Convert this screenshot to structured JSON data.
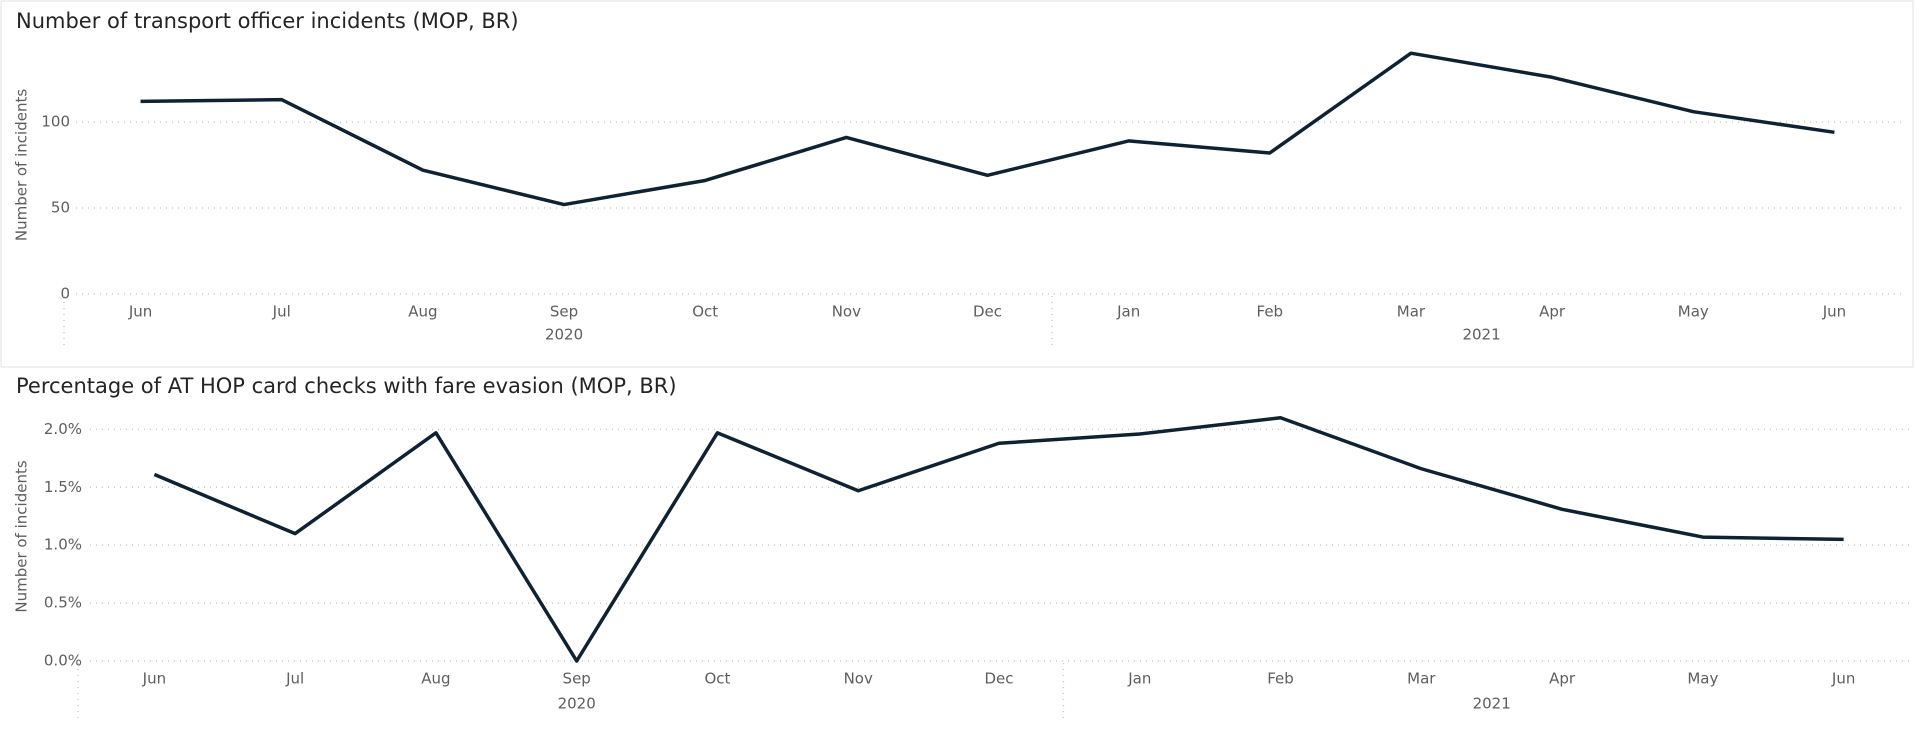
{
  "chart_data": [
    {
      "type": "line",
      "title": "Number of transport officer incidents (MOP, BR)",
      "y_label": "Number of incidents",
      "categories": [
        "Jun",
        "Jul",
        "Aug",
        "Sep",
        "Oct",
        "Nov",
        "Dec",
        "Jan",
        "Feb",
        "Mar",
        "Apr",
        "May",
        "Jun"
      ],
      "groups": [
        {
          "label": "2020",
          "count": 7
        },
        {
          "label": "2021",
          "count": 6
        }
      ],
      "values": [
        112,
        113,
        72,
        52,
        66,
        91,
        69,
        89,
        82,
        140,
        126,
        106,
        94
      ],
      "color": "#0f2233",
      "ylim": [
        0,
        150
      ],
      "yticks": [
        0,
        50,
        100
      ],
      "grid": true
    },
    {
      "type": "line",
      "title": "Percentage of AT HOP card checks with fare evasion (MOP, BR)",
      "y_label": "Number of incidents",
      "categories": [
        "Jun",
        "Jul",
        "Aug",
        "Sep",
        "Oct",
        "Nov",
        "Dec",
        "Jan",
        "Feb",
        "Mar",
        "Apr",
        "May",
        "Jun"
      ],
      "groups": [
        {
          "label": "2020",
          "count": 7
        },
        {
          "label": "2021",
          "count": 6
        }
      ],
      "values": [
        1.61,
        1.1,
        1.97,
        0,
        1.97,
        1.47,
        1.88,
        1.96,
        2.1,
        1.66,
        1.31,
        1.07,
        1.05
      ],
      "color": "#0f2233",
      "ylim": [
        0,
        2.15
      ],
      "yticks": [
        {
          "value": 0,
          "label": "0.0%"
        },
        {
          "value": 0.5,
          "label": "0.5%"
        },
        {
          "value": 1,
          "label": "1.0%"
        },
        {
          "value": 1.5,
          "label": "1.5%"
        },
        {
          "value": 2,
          "label": "2.0%"
        }
      ],
      "grid": true
    }
  ]
}
